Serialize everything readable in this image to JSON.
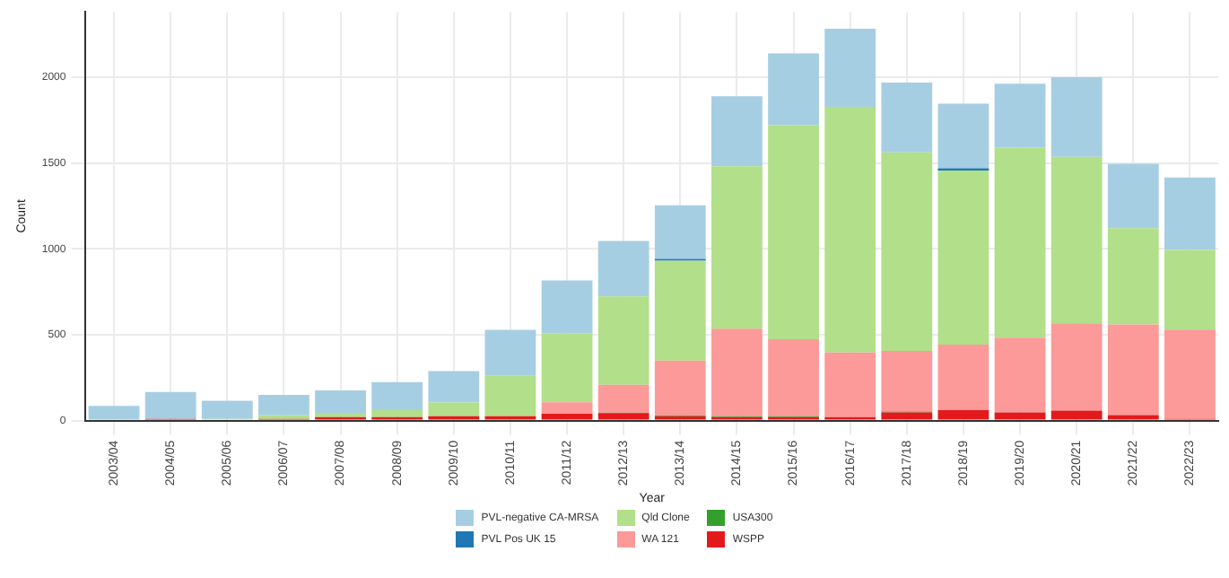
{
  "chart_data": {
    "type": "bar",
    "stacked": true,
    "xlabel": "Year",
    "ylabel": "Count",
    "categories": [
      "2003/04",
      "2004/05",
      "2005/06",
      "2006/07",
      "2007/08",
      "2008/09",
      "2009/10",
      "2010/11",
      "2011/12",
      "2012/13",
      "2013/14",
      "2014/15",
      "2015/16",
      "2016/17",
      "2017/18",
      "2018/19",
      "2019/20",
      "2020/21",
      "2021/22",
      "2022/23"
    ],
    "series": [
      {
        "name": "WSPP",
        "color": "#e31a1c",
        "values": [
          null,
          10,
          null,
          10,
          20,
          20,
          25,
          25,
          40,
          40,
          25,
          20,
          20,
          20,
          48,
          60,
          48,
          58,
          32,
          10
        ]
      },
      {
        "name": "USA300",
        "color": "#33a02c",
        "values": [
          null,
          null,
          null,
          null,
          null,
          null,
          null,
          null,
          null,
          5,
          5,
          5,
          5,
          null,
          5,
          null,
          null,
          null,
          null,
          null
        ]
      },
      {
        "name": "WA 121",
        "color": "#fb9a99",
        "values": [
          null,
          null,
          null,
          null,
          null,
          null,
          null,
          null,
          66,
          163,
          319,
          510,
          448,
          377,
          353,
          382,
          435,
          508,
          528,
          520
        ]
      },
      {
        "name": "Qld Clone",
        "color": "#b2df8a",
        "values": [
          null,
          null,
          10,
          20,
          20,
          40,
          80,
          235,
          400,
          515,
          582,
          946,
          1248,
          1430,
          1156,
          1014,
          1107,
          970,
          560,
          464
        ]
      },
      {
        "name": "PVL Pos UK 15",
        "color": "#1f78b4",
        "values": [
          null,
          null,
          null,
          null,
          null,
          null,
          null,
          null,
          null,
          null,
          10,
          null,
          null,
          null,
          null,
          13,
          null,
          null,
          null,
          null
        ]
      },
      {
        "name": "PVL-negative CA-MRSA",
        "color": "#a6cee3",
        "values": [
          86,
          156,
          105,
          120,
          136,
          164,
          183,
          268,
          310,
          323,
          313,
          407,
          417,
          455,
          406,
          377,
          371,
          464,
          375,
          422
        ]
      }
    ],
    "ylim": [
      0,
      2380
    ],
    "yticks": [
      0,
      500,
      1000,
      1500,
      2000
    ],
    "grid": true,
    "legend": "bottom"
  }
}
